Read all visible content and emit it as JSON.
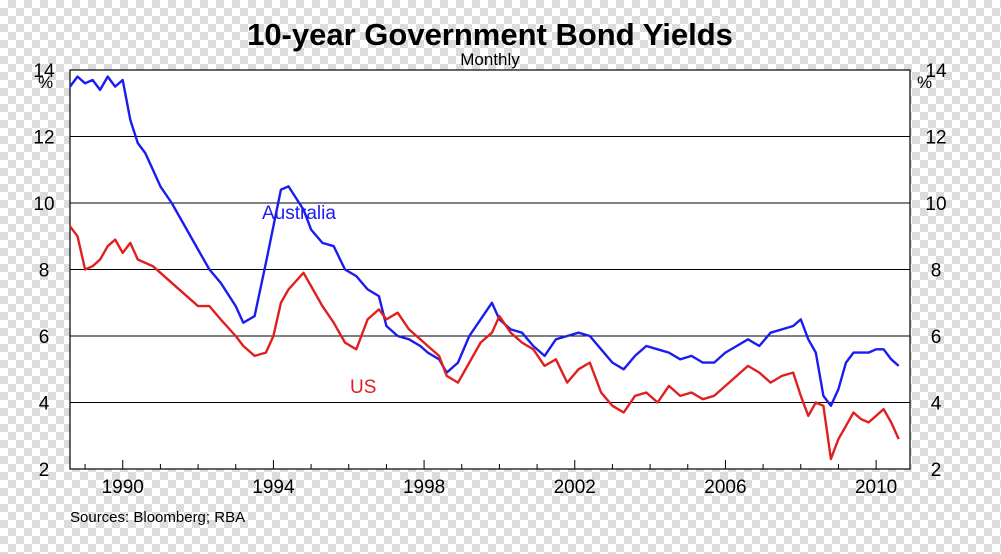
{
  "chart_data": {
    "type": "line",
    "title": "10-year Government Bond Yields",
    "subtitle": "Monthly",
    "ylabel_left": "%",
    "ylabel_right": "%",
    "ylim": [
      2,
      14
    ],
    "yticks": [
      "2",
      "4",
      "6",
      "8",
      "10",
      "12",
      "14"
    ],
    "xlim": [
      1988.6,
      2010.9
    ],
    "xticks": [
      "1990",
      "1994",
      "1998",
      "2002",
      "2006",
      "2010"
    ],
    "grid": true,
    "source": "Sources: Bloomberg; RBA",
    "colors": {
      "Australia": "#1c1cf0",
      "US": "#e02020"
    },
    "series": [
      {
        "name": "Australia",
        "x": [
          1988.6,
          1988.8,
          1989.0,
          1989.2,
          1989.4,
          1989.6,
          1989.8,
          1990.0,
          1990.2,
          1990.4,
          1990.6,
          1990.8,
          1991.0,
          1991.3,
          1991.6,
          1992.0,
          1992.3,
          1992.6,
          1993.0,
          1993.2,
          1993.5,
          1993.8,
          1994.0,
          1994.2,
          1994.4,
          1994.8,
          1995.0,
          1995.3,
          1995.6,
          1995.9,
          1996.2,
          1996.5,
          1996.8,
          1997.0,
          1997.3,
          1997.6,
          1997.9,
          1998.1,
          1998.4,
          1998.6,
          1998.9,
          1999.2,
          1999.5,
          1999.8,
          2000.0,
          2000.3,
          2000.6,
          2000.9,
          2001.2,
          2001.5,
          2001.8,
          2002.1,
          2002.4,
          2002.7,
          2003.0,
          2003.3,
          2003.6,
          2003.9,
          2004.2,
          2004.5,
          2004.8,
          2005.1,
          2005.4,
          2005.7,
          2006.0,
          2006.3,
          2006.6,
          2006.9,
          2007.2,
          2007.5,
          2007.8,
          2008.0,
          2008.2,
          2008.4,
          2008.6,
          2008.8,
          2009.0,
          2009.2,
          2009.4,
          2009.6,
          2009.8,
          2010.0,
          2010.2,
          2010.4,
          2010.6
        ],
        "values": [
          13.5,
          13.8,
          13.6,
          13.7,
          13.4,
          13.8,
          13.5,
          13.7,
          12.5,
          11.8,
          11.5,
          11.0,
          10.5,
          10.0,
          9.4,
          8.6,
          8.0,
          7.6,
          6.9,
          6.4,
          6.6,
          8.2,
          9.3,
          10.4,
          10.5,
          9.8,
          9.2,
          8.8,
          8.7,
          8.0,
          7.8,
          7.4,
          7.2,
          6.3,
          6.0,
          5.9,
          5.7,
          5.5,
          5.3,
          4.9,
          5.2,
          6.0,
          6.5,
          7.0,
          6.5,
          6.2,
          6.1,
          5.7,
          5.4,
          5.9,
          6.0,
          6.1,
          6.0,
          5.6,
          5.2,
          5.0,
          5.4,
          5.7,
          5.6,
          5.5,
          5.3,
          5.4,
          5.2,
          5.2,
          5.5,
          5.7,
          5.9,
          5.7,
          6.1,
          6.2,
          6.3,
          6.5,
          5.9,
          5.5,
          4.2,
          3.9,
          4.4,
          5.2,
          5.5,
          5.5,
          5.5,
          5.6,
          5.6,
          5.3,
          5.1
        ]
      },
      {
        "name": "US",
        "x": [
          1988.6,
          1988.8,
          1989.0,
          1989.2,
          1989.4,
          1989.6,
          1989.8,
          1990.0,
          1990.2,
          1990.4,
          1990.6,
          1990.8,
          1991.0,
          1991.3,
          1991.6,
          1992.0,
          1992.3,
          1992.6,
          1993.0,
          1993.2,
          1993.5,
          1993.8,
          1994.0,
          1994.2,
          1994.4,
          1994.8,
          1995.0,
          1995.3,
          1995.6,
          1995.9,
          1996.2,
          1996.5,
          1996.8,
          1997.0,
          1997.3,
          1997.6,
          1997.9,
          1998.1,
          1998.4,
          1998.6,
          1998.9,
          1999.2,
          1999.5,
          1999.8,
          2000.0,
          2000.3,
          2000.6,
          2000.9,
          2001.2,
          2001.5,
          2001.8,
          2002.1,
          2002.4,
          2002.7,
          2003.0,
          2003.3,
          2003.6,
          2003.9,
          2004.2,
          2004.5,
          2004.8,
          2005.1,
          2005.4,
          2005.7,
          2006.0,
          2006.3,
          2006.6,
          2006.9,
          2007.2,
          2007.5,
          2007.8,
          2008.0,
          2008.2,
          2008.4,
          2008.6,
          2008.8,
          2009.0,
          2009.2,
          2009.4,
          2009.6,
          2009.8,
          2010.0,
          2010.2,
          2010.4,
          2010.6
        ],
        "values": [
          9.3,
          9.0,
          8.0,
          8.1,
          8.3,
          8.7,
          8.9,
          8.5,
          8.8,
          8.3,
          8.2,
          8.1,
          7.9,
          7.6,
          7.3,
          6.9,
          6.9,
          6.5,
          6.0,
          5.7,
          5.4,
          5.5,
          6.0,
          7.0,
          7.4,
          7.9,
          7.5,
          6.9,
          6.4,
          5.8,
          5.6,
          6.5,
          6.8,
          6.5,
          6.7,
          6.2,
          5.9,
          5.7,
          5.4,
          4.8,
          4.6,
          5.2,
          5.8,
          6.1,
          6.6,
          6.1,
          5.8,
          5.6,
          5.1,
          5.3,
          4.6,
          5.0,
          5.2,
          4.3,
          3.9,
          3.7,
          4.2,
          4.3,
          4.0,
          4.5,
          4.2,
          4.3,
          4.1,
          4.2,
          4.5,
          4.8,
          5.1,
          4.9,
          4.6,
          4.8,
          4.9,
          4.2,
          3.6,
          4.0,
          3.9,
          2.3,
          2.9,
          3.3,
          3.7,
          3.5,
          3.4,
          3.6,
          3.8,
          3.4,
          2.9
        ]
      }
    ]
  }
}
